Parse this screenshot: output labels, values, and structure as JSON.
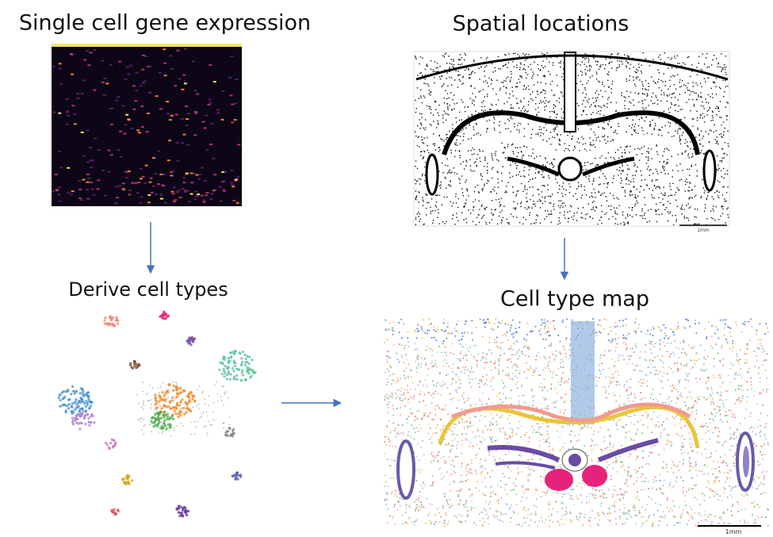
{
  "panels": {
    "expression": {
      "title": "Single cell gene expression"
    },
    "cell_types": {
      "title": "Derive cell types"
    },
    "spatial": {
      "title": "Spatial locations",
      "scale_label": "1mm"
    },
    "map": {
      "title": "Cell type map",
      "scale_label": "1mm"
    }
  }
}
